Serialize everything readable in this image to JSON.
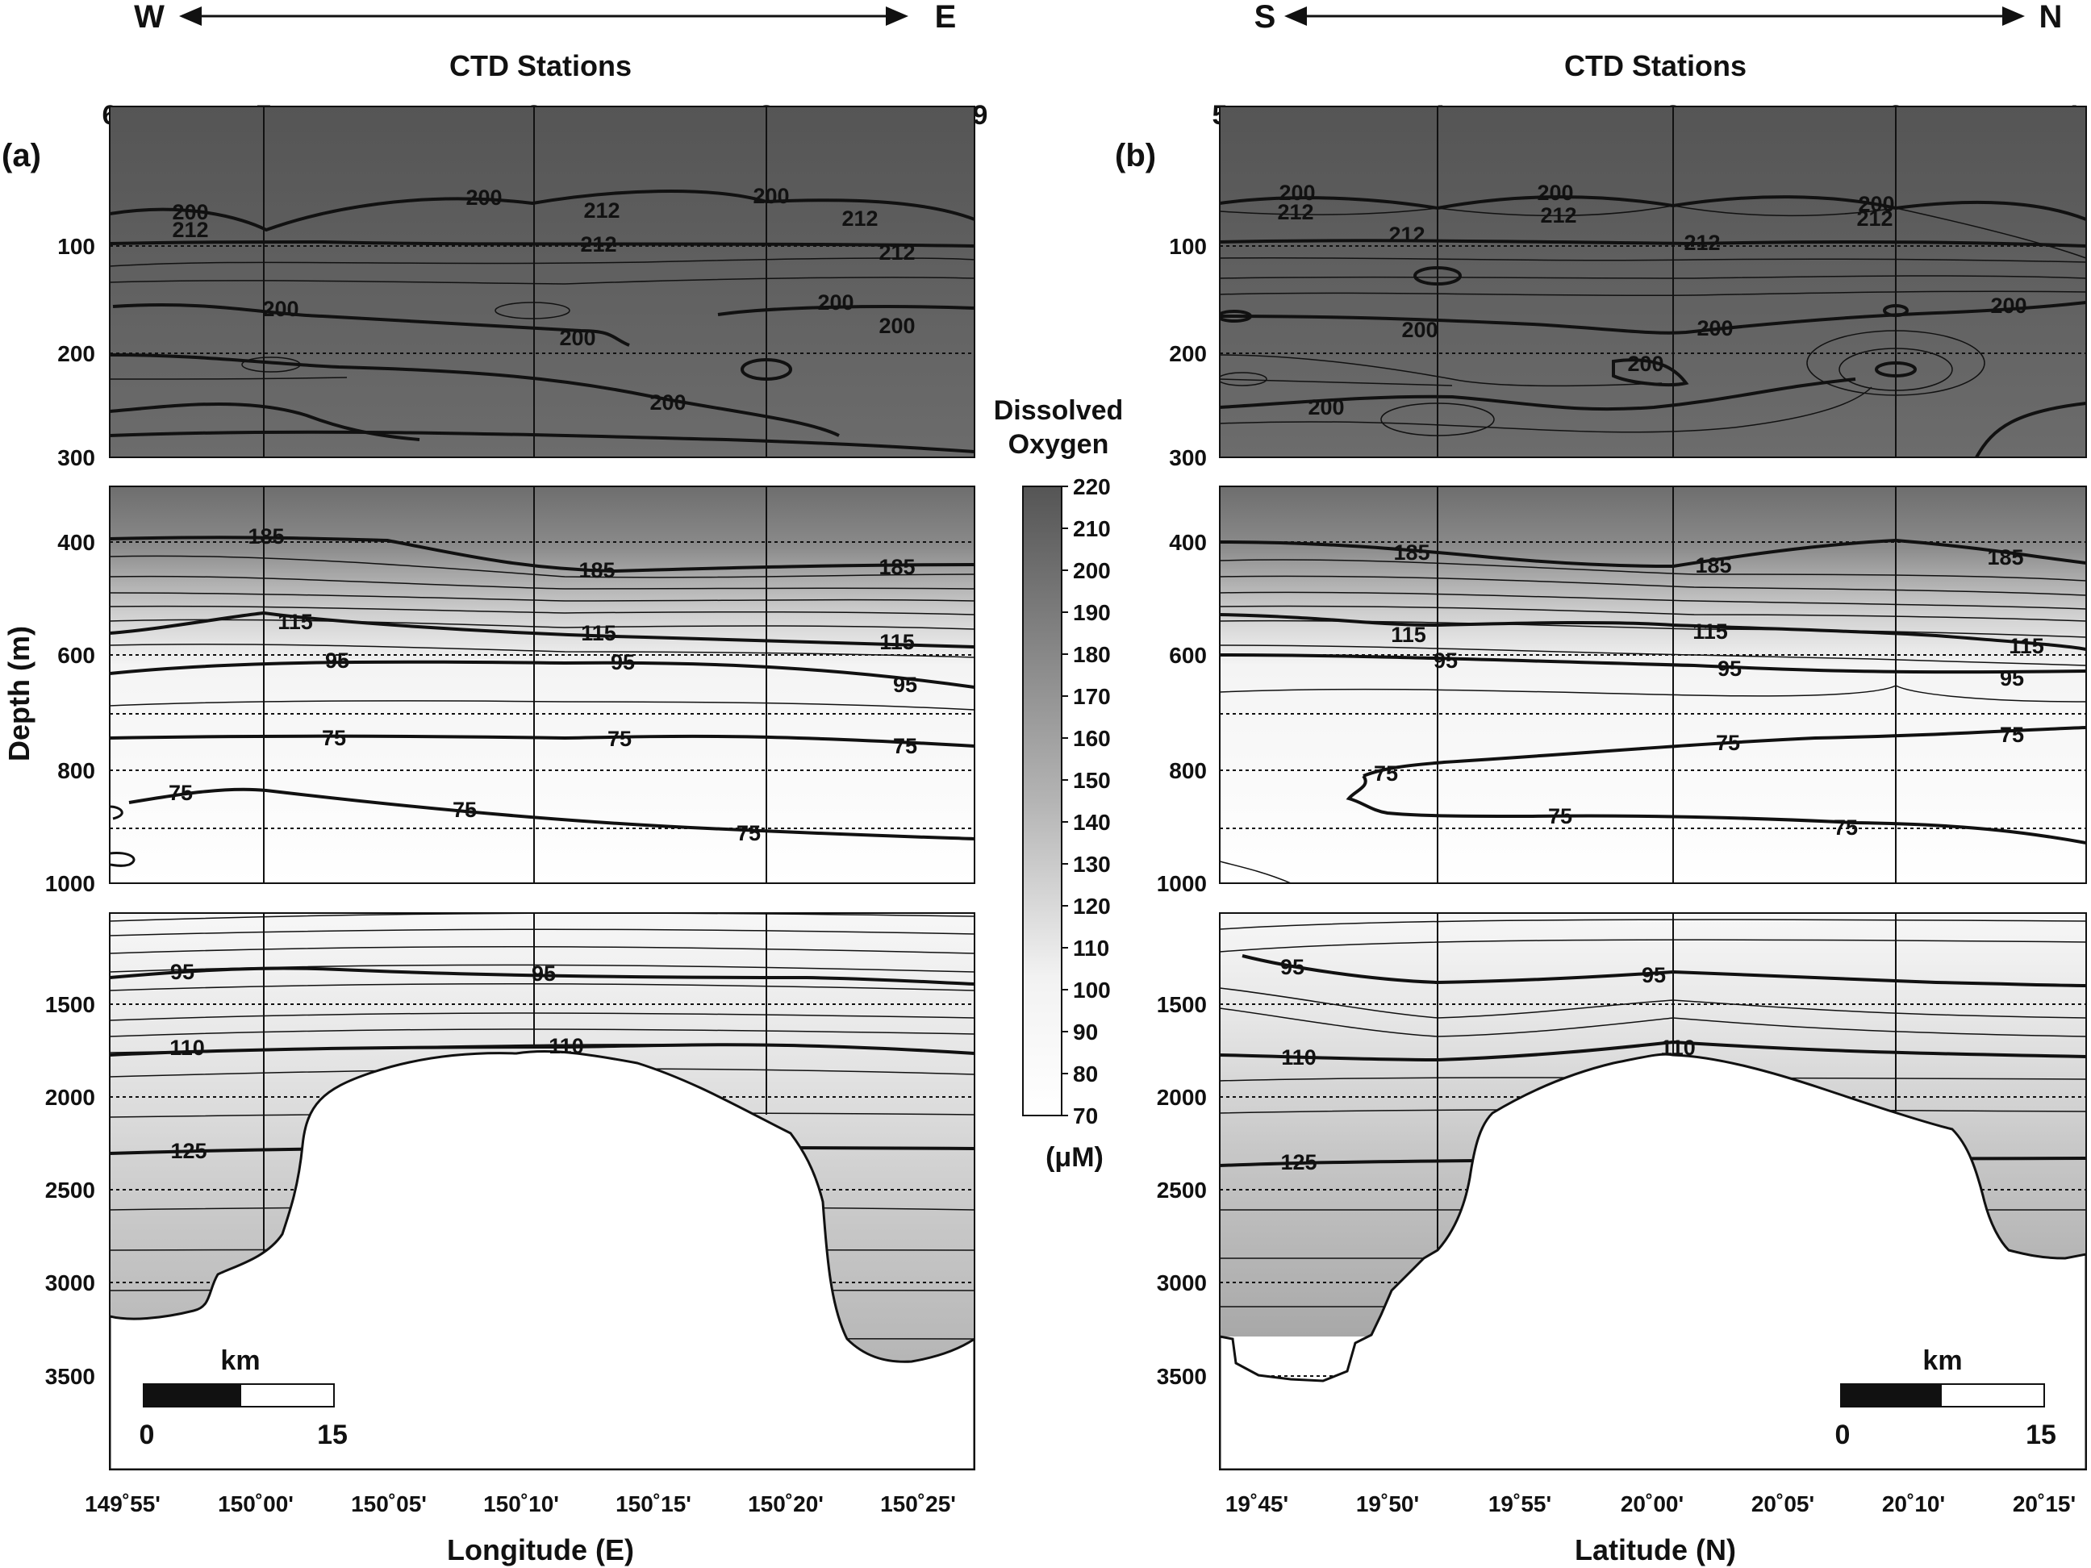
{
  "chart_data": [
    {
      "type": "contour",
      "panel_label": "(a)",
      "direction_left": "W",
      "direction_right": "E",
      "station_axis_title": "CTD Stations",
      "stations": [
        "6",
        "7",
        "3",
        "8",
        "9"
      ],
      "xlabel": "Longitude (E)",
      "x_ticks": [
        "149˚55'",
        "150˚00'",
        "150˚05'",
        "150˚10'",
        "150˚15'",
        "150˚20'",
        "150˚25'"
      ],
      "ylabel": "Depth (m)",
      "y_ticks_top": [
        "100",
        "200",
        "300"
      ],
      "y_ticks_middle": [
        "400",
        "600",
        "800",
        "1000"
      ],
      "y_ticks_bottom": [
        "1500",
        "2000",
        "2500",
        "3000",
        "3500"
      ],
      "contour_labels_top": [
        "200",
        "212",
        "200",
        "212",
        "212",
        "200",
        "212",
        "212",
        "200",
        "200",
        "200",
        "200",
        "200"
      ],
      "contour_labels_middle": [
        "185",
        "185",
        "185",
        "115",
        "115",
        "115",
        "95",
        "95",
        "95",
        "75",
        "75",
        "75",
        "75",
        "75",
        "75"
      ],
      "contour_labels_bottom": [
        "95",
        "95",
        "110",
        "110",
        "125"
      ],
      "scale_bar": {
        "unit": "km",
        "min": "0",
        "max": "15"
      }
    },
    {
      "type": "contour",
      "panel_label": "(b)",
      "direction_left": "S",
      "direction_right": "N",
      "station_axis_title": "CTD Stations",
      "stations": [
        "5",
        "4",
        "3",
        "2",
        "1"
      ],
      "xlabel": "Latitude (N)",
      "x_ticks": [
        "19˚45'",
        "19˚50'",
        "19˚55'",
        "20˚00'",
        "20˚05'",
        "20˚10'",
        "20˚15'"
      ],
      "y_ticks_top": [
        "100",
        "200",
        "300"
      ],
      "y_ticks_middle": [
        "400",
        "600",
        "800",
        "1000"
      ],
      "y_ticks_bottom": [
        "1500",
        "2000",
        "2500",
        "3000",
        "3500"
      ],
      "contour_labels_top": [
        "200",
        "212",
        "200",
        "212",
        "200",
        "212",
        "212",
        "212",
        "200",
        "200",
        "200",
        "200",
        "200"
      ],
      "contour_labels_middle": [
        "185",
        "185",
        "185",
        "115",
        "115",
        "115",
        "95",
        "95",
        "95",
        "75",
        "75",
        "75",
        "75",
        "75",
        "75"
      ],
      "contour_labels_bottom": [
        "95",
        "95",
        "110",
        "110",
        "125"
      ],
      "scale_bar": {
        "unit": "km",
        "min": "0",
        "max": "15"
      }
    }
  ],
  "colorbar": {
    "title_line1": "Dissolved",
    "title_line2": "Oxygen",
    "unit": "(μM)",
    "ticks": [
      "220",
      "210",
      "200",
      "190",
      "180",
      "170",
      "160",
      "150",
      "140",
      "130",
      "120",
      "110",
      "100",
      "90",
      "80",
      "70"
    ],
    "range": [
      70,
      220
    ]
  }
}
